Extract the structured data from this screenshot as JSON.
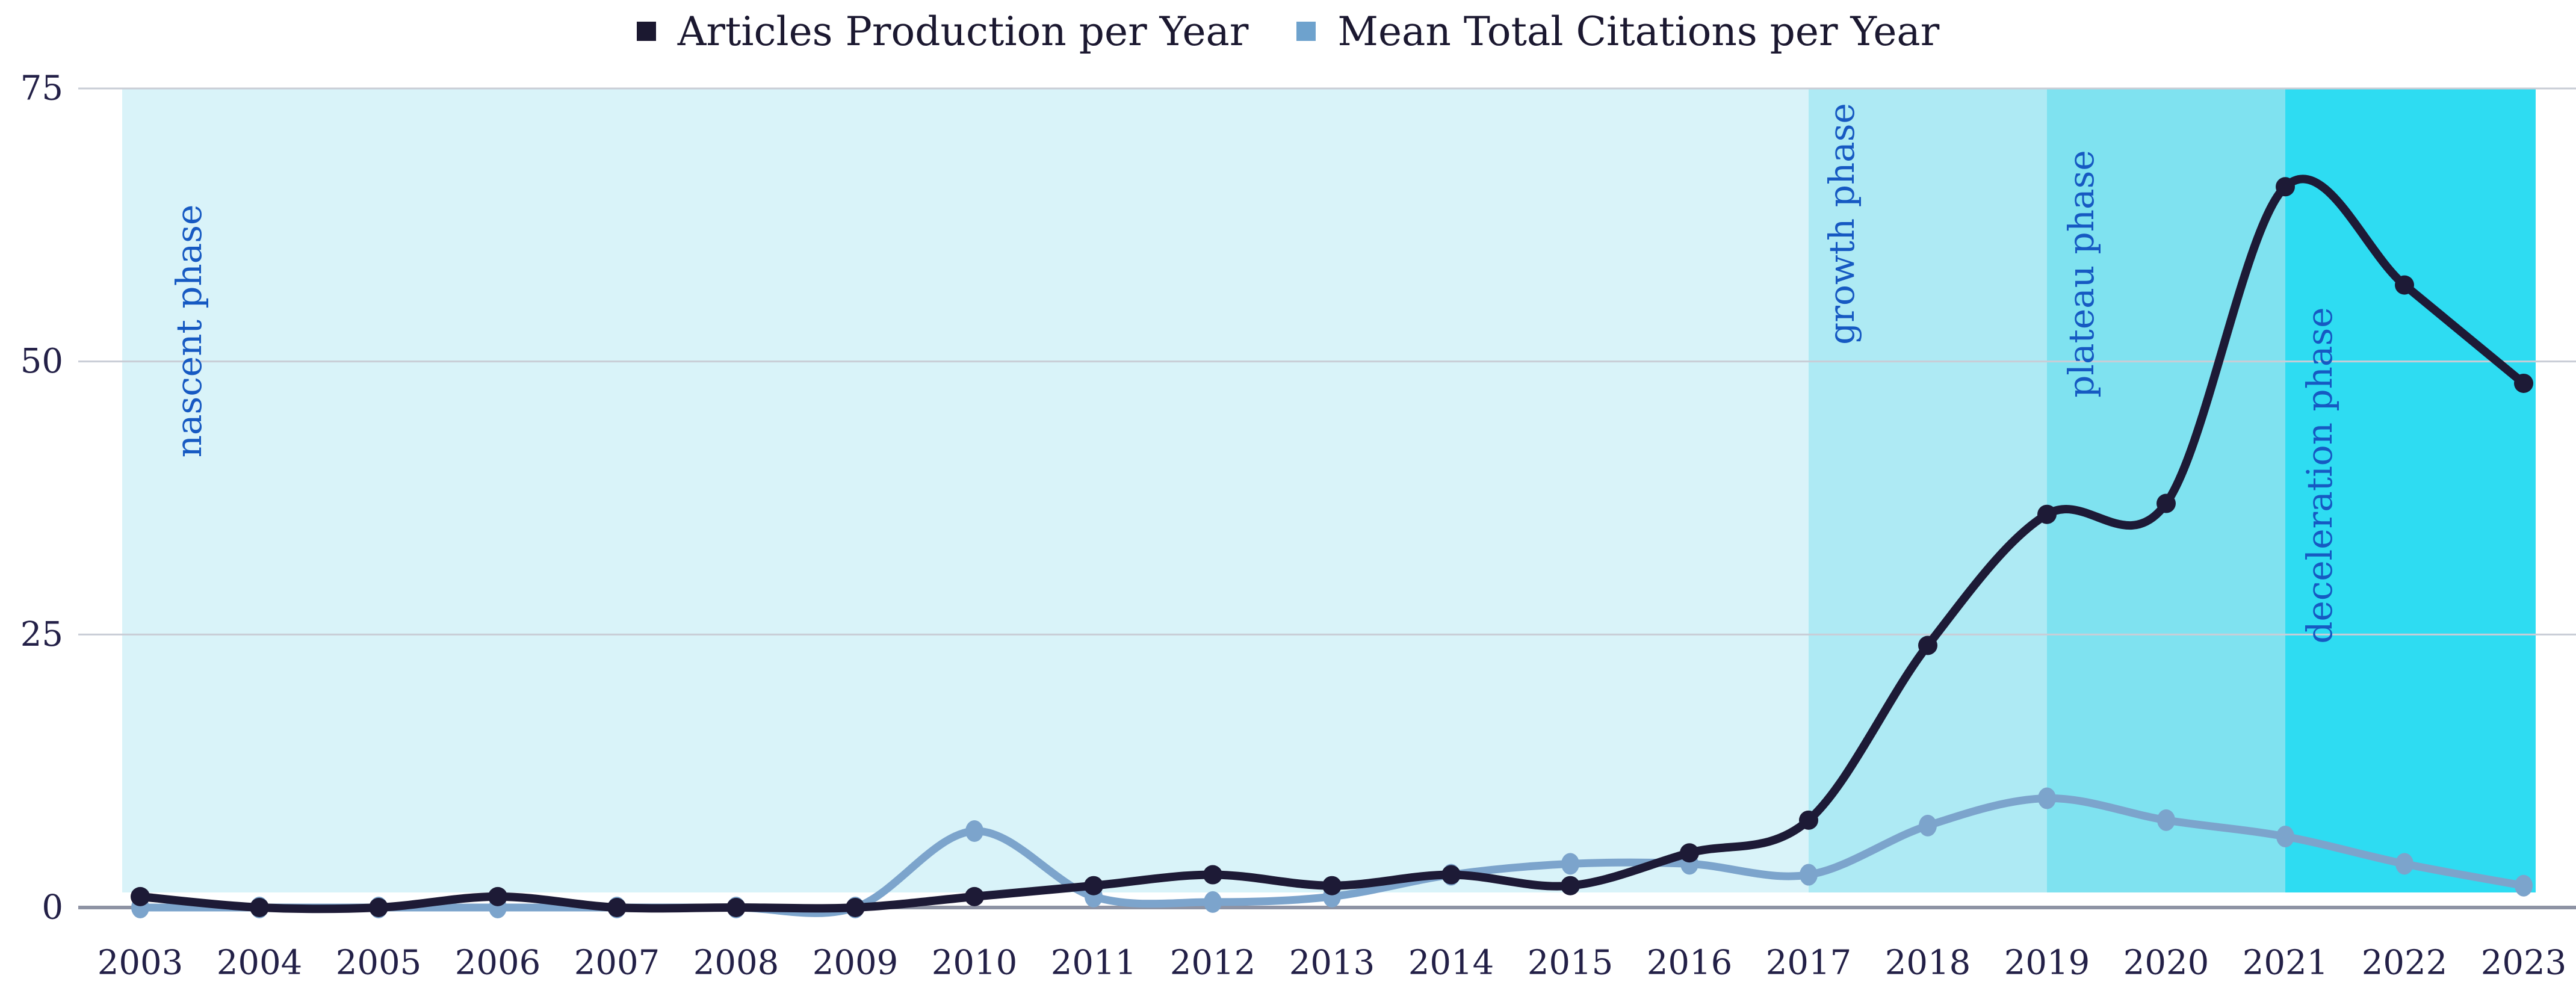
{
  "page": {
    "background": "#ffffff"
  },
  "legend": {
    "items": [
      {
        "label": "Articles Production per Year",
        "color": "#1b1830"
      },
      {
        "label": "Mean Total Citations per Year",
        "color": "#6ea2cd"
      }
    ]
  },
  "chart_data": {
    "type": "line",
    "title": "",
    "xlabel": "",
    "ylabel": "",
    "x": [
      2003,
      2004,
      2005,
      2006,
      2007,
      2008,
      2009,
      2010,
      2011,
      2012,
      2013,
      2014,
      2015,
      2016,
      2017,
      2018,
      2019,
      2020,
      2021,
      2022,
      2023
    ],
    "series": [
      {
        "name": "Articles Production per Year",
        "color": "#1d1a36",
        "values": [
          1,
          0,
          0,
          1,
          0,
          0,
          0,
          1,
          2,
          3,
          2,
          3,
          2,
          5,
          8,
          24,
          36,
          37,
          66,
          57,
          48
        ]
      },
      {
        "name": "Mean Total Citations per Year",
        "color": "#7ca4cc",
        "values": [
          0,
          0,
          0,
          0,
          0,
          0,
          0,
          7,
          1,
          0.5,
          1,
          3,
          4,
          4,
          3,
          7.5,
          10,
          8,
          6.5,
          4,
          2
        ]
      }
    ],
    "ylim": [
      0,
      75
    ],
    "yticks": [
      0,
      25,
      50,
      75
    ],
    "grid": "horizontal",
    "legend_position": "top-center",
    "phases": [
      {
        "name": "nascent phase",
        "from": 2003,
        "to": 2017,
        "color": "#d9f3f9"
      },
      {
        "name": "growth phase",
        "from": 2017,
        "to": 2019,
        "color": "#aeeaf4"
      },
      {
        "name": "plateau phase",
        "from": 2019,
        "to": 2021,
        "color": "#7fe2f0"
      },
      {
        "name": "deceleration phase",
        "from": 2021,
        "to": 2023,
        "color": "#2edcf2"
      }
    ],
    "phase_label_color": "#1659c2",
    "axis_label_color": "#232047",
    "gridline_color": "#c9cdd6",
    "zero_line_color": "#8e93a4"
  }
}
